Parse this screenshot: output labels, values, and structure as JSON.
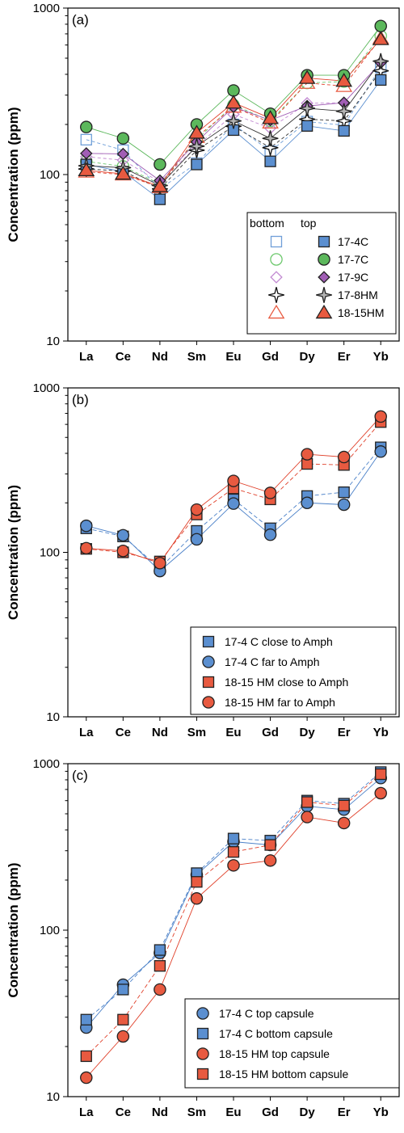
{
  "colors": {
    "blue_fill": "#5b8fd0",
    "blue_open": "#6f9fd8",
    "green_fill": "#5cb85c",
    "green_open": "#6cc86c",
    "purple_fill": "#a15eb5",
    "purple_open": "#c28ad2",
    "gray_fill": "#b5b5b5",
    "red_fill": "#e85a40",
    "red_open": "#e85a40",
    "red_line": "#e0402a",
    "blue_line": "#4a80c8",
    "green_line": "#5cb85c",
    "purple_line": "#b070c8"
  },
  "chart_data": [
    {
      "id": "a",
      "type": "line",
      "panel_label": "(a)",
      "ylabel": "Concentration (ppm)",
      "yscale": "log",
      "ylim": [
        10,
        1000
      ],
      "yticks": [
        "10",
        "100",
        "1000"
      ],
      "categories": [
        "La",
        "Ce",
        "Nd",
        "Sm",
        "Eu",
        "Gd",
        "Dy",
        "Er",
        "Yb"
      ],
      "legend_headers": [
        "bottom",
        "top"
      ],
      "legend_placement": "bottom-right",
      "series": [
        {
          "key": "17-4C-bottom",
          "group": "17-4C",
          "pos": "bottom",
          "marker": "square",
          "filled": false,
          "color": "#6f9fd8",
          "values": [
            162,
            140,
            82,
            117,
            200,
            138,
            208,
            198,
            440
          ]
        },
        {
          "key": "17-7C-bottom",
          "group": "17-7C",
          "pos": "bottom",
          "marker": "circle",
          "filled": false,
          "color": "#6cc86c",
          "values": [
            120,
            112,
            88,
            162,
            262,
            210,
            355,
            362,
            680
          ]
        },
        {
          "key": "17-9C-bottom",
          "group": "17-9C",
          "pos": "bottom",
          "marker": "diamond",
          "filled": false,
          "color": "#c28ad2",
          "values": [
            128,
            122,
            90,
            148,
            230,
            190,
            268,
            270,
            470
          ]
        },
        {
          "key": "17-8HM-bottom",
          "group": "17-8HM",
          "pos": "bottom",
          "marker": "star",
          "filled": false,
          "color": "#ffffff",
          "values": [
            108,
            105,
            82,
            140,
            195,
            145,
            215,
            210,
            420
          ]
        },
        {
          "key": "18-15HM-bottom",
          "group": "18-15HM",
          "pos": "bottom",
          "marker": "triangle",
          "filled": false,
          "color": "#e85a40",
          "values": [
            104,
            100,
            84,
            168,
            255,
            205,
            355,
            340,
            660
          ]
        },
        {
          "key": "17-4C-top",
          "group": "17-4C",
          "pos": "top",
          "label": "17-4C",
          "marker": "square",
          "filled": true,
          "color": "#5b8fd0",
          "values": [
            115,
            104,
            71,
            115,
            185,
            120,
            196,
            183,
            370
          ]
        },
        {
          "key": "17-7C-top",
          "group": "17-7C",
          "pos": "top",
          "label": "17-7C",
          "marker": "circle",
          "filled": true,
          "color": "#5cb85c",
          "values": [
            193,
            165,
            115,
            200,
            320,
            232,
            395,
            395,
            780
          ]
        },
        {
          "key": "17-9C-top",
          "group": "17-9C",
          "pos": "top",
          "label": "17-9C",
          "marker": "diamond",
          "filled": true,
          "color": "#a15eb5",
          "values": [
            134,
            133,
            92,
            157,
            255,
            212,
            258,
            270,
            470
          ]
        },
        {
          "key": "17-8HM-top",
          "group": "17-8HM",
          "pos": "top",
          "label": "17-8HM",
          "marker": "star",
          "filled": true,
          "color": "#b5b5b5",
          "values": [
            113,
            110,
            86,
            148,
            210,
            165,
            250,
            240,
            480
          ]
        },
        {
          "key": "18-15HM-top",
          "group": "18-15HM",
          "pos": "top",
          "label": "18-15HM",
          "marker": "triangle",
          "filled": true,
          "color": "#e85a40",
          "values": [
            106,
            101,
            85,
            178,
            270,
            218,
            380,
            365,
            650
          ]
        }
      ]
    },
    {
      "id": "b",
      "type": "line",
      "panel_label": "(b)",
      "ylabel": "Concentration (ppm)",
      "yscale": "log",
      "ylim": [
        10,
        1000
      ],
      "yticks": [
        "10",
        "100",
        "1000"
      ],
      "categories": [
        "La",
        "Ce",
        "Nd",
        "Sm",
        "Eu",
        "Gd",
        "Dy",
        "Er",
        "Yb"
      ],
      "legend_placement": "bottom-right",
      "series": [
        {
          "label": "17-4 C close to Amph",
          "marker": "square",
          "filled": true,
          "color": "#5b8fd0",
          "dash": "5,3",
          "values": [
            140,
            125,
            80,
            135,
            210,
            140,
            220,
            232,
            435
          ]
        },
        {
          "label": "17-4 C far to Amph",
          "marker": "circle",
          "filled": true,
          "color": "#5b8fd0",
          "dash": "",
          "values": [
            145,
            127,
            77,
            120,
            198,
            128,
            200,
            195,
            410
          ]
        },
        {
          "label": "18-15 HM close to Amph",
          "marker": "square",
          "filled": true,
          "color": "#e85a40",
          "dash": "5,3",
          "values": [
            105,
            100,
            88,
            170,
            245,
            210,
            345,
            340,
            620
          ]
        },
        {
          "label": "18-15 HM far to Amph",
          "marker": "circle",
          "filled": true,
          "color": "#e85a40",
          "dash": "",
          "values": [
            106,
            102,
            86,
            182,
            272,
            230,
            395,
            380,
            670
          ]
        }
      ]
    },
    {
      "id": "c",
      "type": "line",
      "panel_label": "(c)",
      "ylabel": "Concentration (ppm)",
      "yscale": "log",
      "ylim": [
        10,
        1000
      ],
      "yticks": [
        "10",
        "100",
        "1000"
      ],
      "categories": [
        "La",
        "Ce",
        "Nd",
        "Sm",
        "Eu",
        "Gd",
        "Dy",
        "Er",
        "Yb"
      ],
      "legend_placement": "bottom-right",
      "series": [
        {
          "label": "17-4 C top capsule",
          "marker": "circle",
          "filled": true,
          "color": "#5b8fd0",
          "dash": "",
          "values": [
            26,
            47,
            73,
            215,
            340,
            325,
            555,
            530,
            820
          ]
        },
        {
          "label": "17-4 C bottom capsule",
          "marker": "square",
          "filled": true,
          "color": "#5b8fd0",
          "dash": "5,3",
          "values": [
            29,
            44,
            76,
            220,
            355,
            345,
            600,
            575,
            890
          ]
        },
        {
          "label": "18-15 HM top capsule",
          "marker": "circle",
          "filled": true,
          "color": "#e85a40",
          "dash": "",
          "values": [
            13,
            23,
            44,
            155,
            245,
            262,
            478,
            440,
            665
          ]
        },
        {
          "label": "18-15 HM bottom capsule",
          "marker": "square",
          "filled": true,
          "color": "#e85a40",
          "dash": "5,3",
          "values": [
            17.5,
            29,
            61,
            195,
            295,
            325,
            588,
            560,
            865
          ]
        }
      ]
    }
  ]
}
